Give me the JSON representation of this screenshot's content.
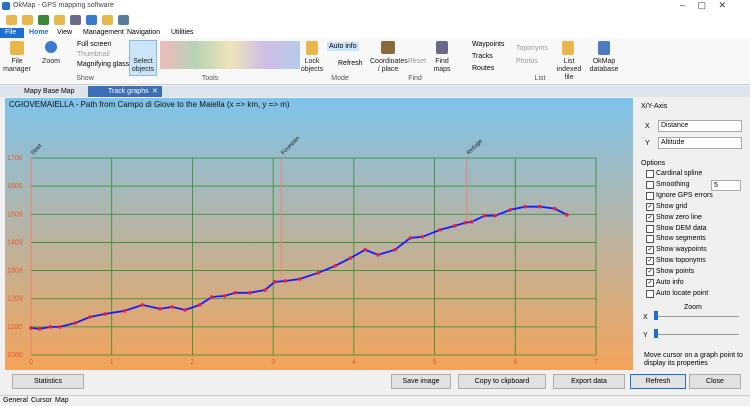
{
  "window": {
    "title": "OkMap - GPS mapping software"
  },
  "menu_tabs": [
    "File",
    "Home",
    "View",
    "Management",
    "Navigation",
    "Utilities"
  ],
  "ribbon": {
    "file_manager": "File manager",
    "zoom": "Zoom",
    "full_screen": "Full screen",
    "thumbnail": "Thumbnail",
    "magnifying_glass": "Magnifying glass",
    "select_objects": "Select objects",
    "lock_objects": "Lock objects",
    "auto_info": "Auto info",
    "refresh": "Refresh",
    "coordinates": "Coordinates / place",
    "reset": "Reset",
    "find_maps": "Find maps",
    "waypoints": "Waypoints",
    "tracks": "Tracks",
    "routes": "Routes",
    "toponyms": "Toponyms",
    "photos": "Photos",
    "list_indexed": "List indexed file",
    "okmap_db": "OkMap database",
    "groups": [
      "Show",
      "Tools",
      "Mode",
      "Find",
      "List"
    ]
  },
  "doc_tabs": [
    "Mapy Base Map",
    "Track graphs"
  ],
  "chart_data": {
    "type": "line",
    "title": "CGIOVEMAIELLA - Path from Campo di Giove to the Maiella (x => km, y => m)",
    "x": [
      0,
      0.11,
      0.24,
      0.36,
      0.55,
      0.73,
      0.92,
      1.16,
      1.38,
      1.6,
      1.75,
      1.91,
      2.09,
      2.24,
      2.4,
      2.53,
      2.71,
      2.9,
      3.02,
      3.15,
      3.33,
      3.56,
      3.77,
      3.96,
      4.14,
      4.3,
      4.51,
      4.7,
      4.85,
      5.07,
      5.25,
      5.38,
      5.46,
      5.62,
      5.75,
      5.94,
      6.12,
      6.31,
      6.49,
      6.64
    ],
    "series": [
      {
        "name": "Altitude",
        "color": "#1a1aff",
        "point_color": "#e8203a",
        "values": [
          1096,
          1093,
          1100,
          1100,
          1114,
          1135,
          1146,
          1157,
          1178,
          1164,
          1171,
          1160,
          1178,
          1206,
          1210,
          1221,
          1221,
          1231,
          1260,
          1263,
          1270,
          1292,
          1317,
          1345,
          1374,
          1356,
          1374,
          1416,
          1420,
          1445,
          1459,
          1470,
          1473,
          1495,
          1495,
          1516,
          1527,
          1527,
          1520,
          1498
        ]
      }
    ],
    "waypoints": [
      {
        "name": "Start",
        "x": 0
      },
      {
        "name": "Fountain",
        "x": 3.1
      },
      {
        "name": "Refuge",
        "x": 5.4
      }
    ],
    "xlim": [
      0,
      7
    ],
    "xticks": [
      0,
      1,
      2,
      3,
      4,
      5,
      6,
      7
    ],
    "ylim": [
      1000,
      1700
    ],
    "yticks": [
      1000,
      1100,
      1200,
      1300,
      1400,
      1500,
      1600,
      1700
    ],
    "grid": true
  },
  "panel": {
    "section": "X/Y-Axis",
    "x_label": "X",
    "x_value": "Distance",
    "y_label": "Y",
    "y_value": "Altitude",
    "options_title": "Options",
    "options": [
      {
        "label": "Cardinal spline",
        "checked": false
      },
      {
        "label": "Smoothing",
        "checked": false
      },
      {
        "label": "Ignore GPS errors",
        "checked": false
      },
      {
        "label": "Show grid",
        "checked": true
      },
      {
        "label": "Show zero line",
        "checked": true
      },
      {
        "label": "Show DEM data",
        "checked": false
      },
      {
        "label": "Show segments",
        "checked": false
      },
      {
        "label": "Show waypoints",
        "checked": true
      },
      {
        "label": "Show toponyms",
        "checked": true
      },
      {
        "label": "Show points",
        "checked": true
      },
      {
        "label": "Auto info",
        "checked": true
      },
      {
        "label": "Auto locate point",
        "checked": false
      }
    ],
    "smoothing_value": "5",
    "zoom": "Zoom",
    "zoom_x": "X",
    "zoom_y": "Y",
    "hint": "Move cursor on a graph point to display its properties"
  },
  "buttons": [
    "Statistics",
    "Save image",
    "Copy to clipboard",
    "Export data",
    "Refresh",
    "Close"
  ],
  "status_tabs": [
    "General",
    "Cursor",
    "Map"
  ]
}
